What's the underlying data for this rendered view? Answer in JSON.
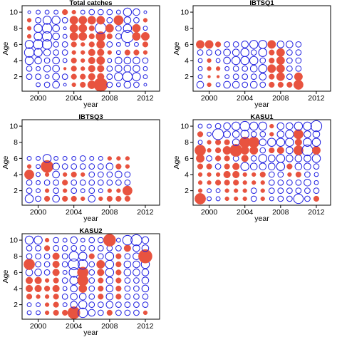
{
  "colors": {
    "positive": "#E8533F",
    "negative": "#1F1FE0"
  },
  "chart_data": [
    {
      "type": "scatter",
      "title": "Total catches",
      "xlabel": "year",
      "ylabel": "Age",
      "xlim": [
        1998.2,
        2013.6
      ],
      "ylim": [
        0.2,
        10.8
      ],
      "xticks": [
        2000,
        2004,
        2008,
        2012
      ],
      "yticks": [
        2,
        4,
        6,
        8,
        10
      ],
      "x": [
        1999,
        2000,
        2001,
        2002,
        2003,
        2004,
        2005,
        2006,
        2007,
        2008,
        2009,
        2010,
        2011,
        2012
      ],
      "ages": [
        1,
        2,
        3,
        4,
        5,
        6,
        7,
        8,
        9,
        10
      ],
      "residuals": [
        [
          0,
          -2,
          -3,
          -4,
          -1,
          2,
          3,
          5,
          9,
          -3,
          -2,
          -4,
          -3,
          -1
        ],
        [
          -3,
          -3,
          -2,
          -4,
          -3,
          3,
          3,
          4,
          4,
          -3,
          -5,
          -6,
          -5,
          -2
        ],
        [
          -3,
          -2,
          -4,
          -4,
          1,
          3,
          2,
          4,
          4,
          -3,
          -4,
          -4,
          -4,
          -2
        ],
        [
          -5,
          -4,
          -3,
          -4,
          -2,
          3,
          2,
          4,
          5,
          -2,
          -4,
          -4,
          -4,
          -3
        ],
        [
          -6,
          -5,
          -4,
          -3,
          -3,
          2,
          2,
          4,
          4,
          2,
          -2,
          3,
          3,
          2
        ],
        [
          -5,
          -6,
          -6,
          -3,
          -3,
          3,
          2,
          3,
          5,
          -3,
          -2,
          -2,
          -2,
          3
        ],
        [
          2,
          -5,
          -6,
          -4,
          -2,
          5,
          5,
          3,
          6,
          3,
          -3,
          -8,
          5,
          5
        ],
        [
          2,
          -5,
          -6,
          -4,
          -1,
          5,
          5,
          3,
          -7,
          5,
          -3,
          -5,
          5,
          -2
        ],
        [
          2,
          -3,
          -5,
          -5,
          -3,
          5,
          5,
          5,
          5,
          -3,
          6,
          -4,
          -3,
          2
        ],
        [
          -1,
          -2,
          -2,
          -2,
          3,
          2,
          -2,
          -3,
          -3,
          -3,
          -2,
          -5,
          -4,
          -1
        ]
      ]
    },
    {
      "type": "scatter",
      "title": "IBTSQ1",
      "xlabel": "year",
      "ylabel": "Age",
      "xlim": [
        1998.2,
        2013.6
      ],
      "ylim": [
        0.2,
        10.8
      ],
      "xticks": [
        2000,
        2004,
        2008,
        2012
      ],
      "yticks": [
        2,
        4,
        6,
        8,
        10
      ],
      "x": [
        1999,
        2000,
        2001,
        2002,
        2003,
        2004,
        2005,
        2006,
        2007,
        2008,
        2009,
        2010
      ],
      "ages": [
        1,
        2,
        3,
        4,
        5,
        6
      ],
      "residuals": [
        [
          -4,
          2,
          -2,
          -4,
          -4,
          -3,
          -4,
          -3,
          3,
          3,
          3,
          6
        ],
        [
          -2,
          1,
          1,
          -2,
          -3,
          -3,
          -3,
          -4,
          3,
          5,
          -3,
          5
        ],
        [
          -2,
          2,
          2,
          -2,
          -3,
          -3,
          -4,
          -5,
          5,
          5,
          -3,
          -3
        ],
        [
          -2,
          2,
          -2,
          -4,
          -5,
          -5,
          -5,
          -3,
          3,
          5,
          -3,
          -3
        ],
        [
          -3,
          -3,
          -3,
          -4,
          -4,
          -5,
          -3,
          -5,
          3,
          5,
          -3,
          -3
        ],
        [
          5,
          5,
          3,
          -3,
          -3,
          -4,
          -5,
          -5,
          5,
          -4,
          -4,
          -3
        ]
      ]
    },
    {
      "type": "scatter",
      "title": "IBTSQ3",
      "xlabel": "year",
      "ylabel": "Age",
      "xlim": [
        1998.2,
        2013.6
      ],
      "ylim": [
        0.2,
        10.8
      ],
      "xticks": [
        2000,
        2004,
        2008,
        2012
      ],
      "yticks": [
        2,
        4,
        6,
        8,
        10
      ],
      "x": [
        1999,
        2000,
        2001,
        2002,
        2003,
        2004,
        2005,
        2006,
        2007,
        2008,
        2009,
        2010
      ],
      "ages": [
        1,
        2,
        3,
        4,
        5,
        6
      ],
      "residuals": [
        [
          -5,
          -3,
          3,
          -4,
          3,
          3,
          2,
          -4,
          2,
          3,
          3,
          3
        ],
        [
          -3,
          -2,
          2,
          -3,
          2,
          -3,
          -2,
          -3,
          -2,
          2,
          2,
          6
        ],
        [
          -3,
          -2,
          -3,
          -3,
          3,
          -3,
          -3,
          -3,
          -3,
          -3,
          -3,
          -3
        ],
        [
          6,
          -2,
          2,
          -4,
          2,
          3,
          2,
          -3,
          -3,
          -3,
          -4,
          -3
        ],
        [
          2,
          -2,
          8,
          -4,
          -3,
          -3,
          -3,
          -3,
          -3,
          -4,
          3,
          2
        ],
        [
          -2,
          -2,
          -5,
          -2,
          -2,
          -2,
          -3,
          -2,
          -2,
          2,
          2,
          2
        ]
      ]
    },
    {
      "type": "scatter",
      "title": "KASU1",
      "xlabel": "year",
      "ylabel": "Age",
      "xlim": [
        1998.2,
        2013.6
      ],
      "ylim": [
        0.2,
        10.8
      ],
      "xticks": [
        2000,
        2004,
        2008,
        2012
      ],
      "yticks": [
        2,
        4,
        6,
        8,
        10
      ],
      "x": [
        1999,
        2000,
        2001,
        2002,
        2003,
        2004,
        2005,
        2006,
        2007,
        2008,
        2009,
        2010,
        2011,
        2012
      ],
      "ages": [
        1,
        2,
        3,
        4,
        5,
        6,
        7,
        8,
        9,
        10
      ],
      "residuals": [
        [
          7,
          -2,
          -2,
          2,
          2,
          2,
          -3,
          2,
          -2,
          -3,
          -3,
          -6,
          -3,
          3
        ],
        [
          2,
          -2,
          -2,
          2,
          2,
          2,
          -3,
          2,
          -3,
          -3,
          -3,
          -3,
          -3,
          -3
        ],
        [
          2,
          2,
          3,
          3,
          3,
          2,
          2,
          2,
          -3,
          -3,
          -3,
          -3,
          -4,
          -2
        ],
        [
          2,
          2,
          2,
          4,
          4,
          2,
          2,
          3,
          -3,
          -3,
          2,
          3,
          -3,
          -2
        ],
        [
          3,
          3,
          -3,
          3,
          4,
          -5,
          -4,
          -4,
          -4,
          -5,
          3,
          -4,
          -4,
          -3
        ],
        [
          5,
          -3,
          3,
          3,
          -3,
          4,
          -3,
          -5,
          -4,
          -5,
          -4,
          -4,
          -4,
          -5
        ],
        [
          7,
          2,
          3,
          5,
          8,
          5,
          5,
          -3,
          3,
          4,
          -4,
          6,
          -7,
          5
        ],
        [
          -2,
          2,
          3,
          3,
          -4,
          7,
          7,
          -4,
          -5,
          -5,
          -5,
          4,
          -5,
          -5
        ],
        [
          3,
          -2,
          -7,
          -4,
          -4,
          -5,
          -3,
          -3,
          2,
          -4,
          -5,
          6,
          -4,
          -4
        ],
        [
          -2,
          -2,
          -3,
          -4,
          -5,
          -6,
          -5,
          -5,
          2,
          -4,
          -4,
          -5,
          -5,
          -7
        ]
      ]
    },
    {
      "type": "scatter",
      "title": "KASU2",
      "xlabel": "year",
      "ylabel": "Age",
      "xlim": [
        1998.2,
        2013.6
      ],
      "ylim": [
        0.2,
        10.8
      ],
      "xticks": [
        2000,
        2004,
        2008,
        2012
      ],
      "yticks": [
        2,
        4,
        6,
        8,
        10
      ],
      "x": [
        1999,
        2000,
        2001,
        2002,
        2003,
        2004,
        2005,
        2006,
        2007,
        2008,
        2009,
        2010,
        2011,
        2012
      ],
      "ages": [
        1,
        2,
        3,
        4,
        5,
        6,
        7,
        8,
        9,
        10
      ],
      "residuals": [
        [
          -2,
          -2,
          2,
          3,
          3,
          8,
          -6,
          -4,
          -3,
          3,
          -3,
          -3,
          -3,
          2
        ],
        [
          -2,
          -2,
          2,
          3,
          -2,
          -4,
          -5,
          -3,
          -3,
          -4,
          -3,
          -3,
          -3,
          -3
        ],
        [
          3,
          2,
          2,
          3,
          -3,
          -4,
          -4,
          -3,
          3,
          -4,
          3,
          -3,
          -3,
          -3
        ],
        [
          4,
          4,
          3,
          4,
          -2,
          -4,
          5,
          -3,
          3,
          -4,
          3,
          -3,
          -3,
          -4
        ],
        [
          4,
          4,
          2,
          3,
          -3,
          -5,
          7,
          -3,
          3,
          -4,
          3,
          -3,
          -3,
          -4
        ],
        [
          -4,
          -4,
          -3,
          4,
          -2,
          -6,
          7,
          -3,
          4,
          -5,
          3,
          -4,
          -4,
          -4
        ],
        [
          7,
          -3,
          -3,
          4,
          -3,
          -7,
          -6,
          -3,
          5,
          -5,
          3,
          -4,
          -4,
          -5
        ],
        [
          -3,
          -3,
          -3,
          4,
          -3,
          -6,
          -5,
          3,
          -3,
          -5,
          3,
          -3,
          -4,
          9
        ],
        [
          -3,
          -3,
          3,
          -3,
          -3,
          -3,
          -3,
          -3,
          -3,
          -3,
          -3,
          4,
          -4,
          -4
        ],
        [
          -5,
          -5,
          2,
          -3,
          -2,
          -4,
          -2,
          -3,
          -3,
          8,
          -2,
          -6,
          -7,
          -4
        ]
      ]
    }
  ]
}
